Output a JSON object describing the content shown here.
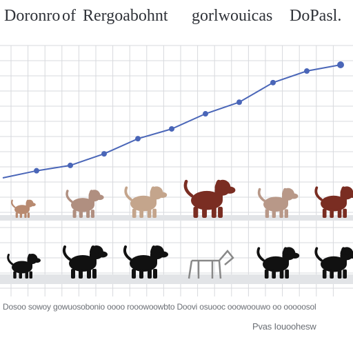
{
  "header": {
    "title_parts": [
      "Doronro",
      "of",
      "Rergoabohnt",
      "gorlwouicas",
      "DoPasl."
    ]
  },
  "chart_data": {
    "type": "line",
    "title": "",
    "xlabel": "",
    "ylabel": "",
    "x": [
      1,
      2,
      3,
      4,
      5,
      6,
      7,
      8,
      9,
      10,
      11
    ],
    "series": [
      {
        "name": "",
        "color": "#4a66b8",
        "values": [
          0,
          0.08,
          0.14,
          0.27,
          0.44,
          0.55,
          0.72,
          0.85,
          1.07,
          1.2,
          1.27
        ]
      }
    ],
    "grid": true,
    "legend": "none"
  },
  "illustrations": {
    "colored_row": [
      {
        "icon": "puppy-icon",
        "color": "#b88a70"
      },
      {
        "icon": "dog-icon",
        "color": "#b08f80"
      },
      {
        "icon": "dog-icon",
        "color": "#c4a58c"
      },
      {
        "icon": "dog-icon",
        "color": "#7a2d22"
      },
      {
        "icon": "dog-icon",
        "color": "#b89888"
      },
      {
        "icon": "dog-icon",
        "color": "#7a2d22"
      }
    ],
    "silhouette_row": [
      {
        "icon": "puppy-icon",
        "color": "#111111"
      },
      {
        "icon": "dog-icon",
        "color": "#111111"
      },
      {
        "icon": "dog-icon",
        "color": "#111111"
      },
      {
        "icon": "dog-sketch-icon",
        "color": "#888888"
      },
      {
        "icon": "dog-icon",
        "color": "#111111"
      },
      {
        "icon": "dog-icon",
        "color": "#111111"
      }
    ]
  },
  "footer": {
    "caption_line": "Dosoo sowoy gowuosobonio oooo rooowoowbto Doovi osuooc ooowoouwo oo ooooosol",
    "note": "Pvas Iouoohesw"
  },
  "colors": {
    "line": "#4a66b8",
    "grid": "#d7d9dd",
    "baseline": "#e2e4e7"
  }
}
